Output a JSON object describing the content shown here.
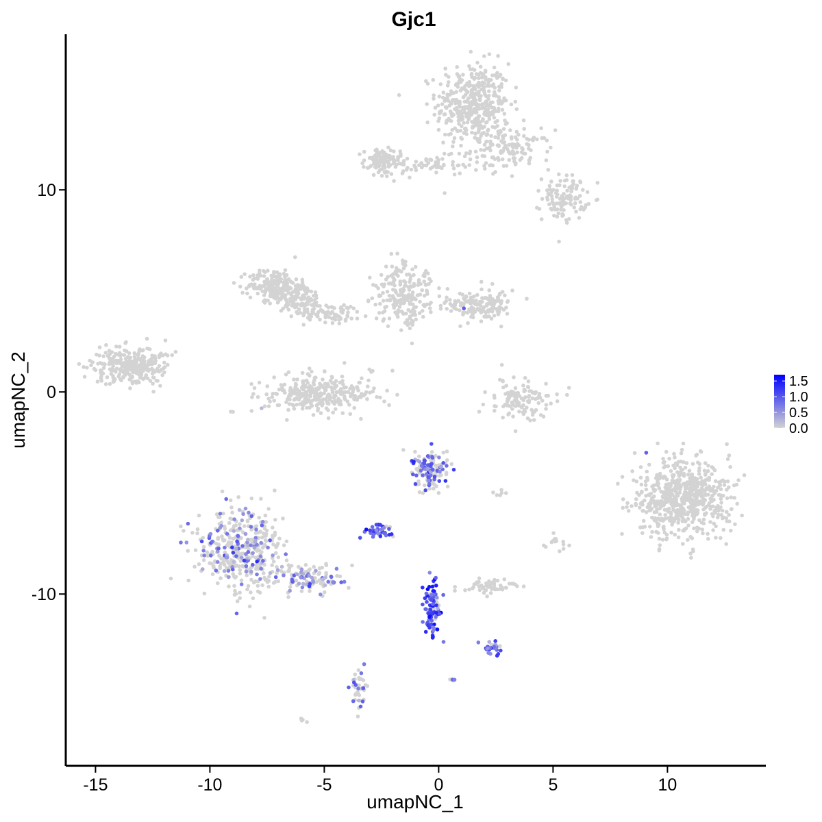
{
  "chart_data": {
    "type": "scatter",
    "title": "Gjc1",
    "xlabel": "umapNC_1",
    "ylabel": "umapNC_2",
    "xlim": [
      -16.3,
      14.3
    ],
    "ylim": [
      -18.5,
      17.7
    ],
    "x_ticks": [
      -15,
      -10,
      -5,
      0,
      5,
      10
    ],
    "x_tick_labels": [
      "-15",
      "-10",
      "-5",
      "0",
      "5",
      "10"
    ],
    "y_ticks": [
      -10,
      0,
      10
    ],
    "y_tick_labels": [
      "-10",
      "0",
      "10"
    ],
    "color_scale": {
      "low_color": "#d3d3d3",
      "high_color": "#0000ff",
      "min": 0,
      "max": 1.7,
      "ticks": [
        0.0,
        0.5,
        1.0,
        1.5
      ],
      "tick_labels": [
        "0.0",
        "0.5",
        "1.0",
        "1.5"
      ],
      "legend_position": "right"
    },
    "grid": false,
    "clusters": [
      {
        "cx": 1.5,
        "cy": 14.2,
        "sx": 1.0,
        "sy": 1.3,
        "n": 420,
        "expr": 0,
        "expr_frac": 0
      },
      {
        "cx": 3.2,
        "cy": 12.0,
        "sx": 1.1,
        "sy": 0.6,
        "n": 120,
        "expr": 0,
        "expr_frac": 0
      },
      {
        "cx": 5.5,
        "cy": 9.6,
        "sx": 0.6,
        "sy": 0.7,
        "n": 110,
        "expr": 0,
        "expr_frac": 0
      },
      {
        "cx": -2.5,
        "cy": 11.4,
        "sx": 0.5,
        "sy": 0.4,
        "n": 90,
        "expr": 0,
        "expr_frac": 0
      },
      {
        "cx": -0.5,
        "cy": 11.2,
        "sx": 1.4,
        "sy": 0.3,
        "n": 70,
        "expr": 0,
        "expr_frac": 0
      },
      {
        "cx": -7.2,
        "cy": 5.3,
        "sx": 0.7,
        "sy": 0.5,
        "n": 170,
        "expr": 0,
        "expr_frac": 0
      },
      {
        "cx": -6.1,
        "cy": 4.6,
        "sx": 0.7,
        "sy": 0.5,
        "n": 130,
        "expr": 0,
        "expr_frac": 0
      },
      {
        "cx": -4.6,
        "cy": 3.9,
        "sx": 0.8,
        "sy": 0.3,
        "n": 70,
        "expr": 0,
        "expr_frac": 0
      },
      {
        "cx": -5.2,
        "cy": -0.1,
        "sx": 1.6,
        "sy": 0.6,
        "n": 300,
        "expr": 0.4,
        "expr_frac": 0.01
      },
      {
        "cx": -1.5,
        "cy": 4.8,
        "sx": 0.8,
        "sy": 1.0,
        "n": 220,
        "expr": 0,
        "expr_frac": 0
      },
      {
        "cx": 1.8,
        "cy": 4.3,
        "sx": 0.9,
        "sy": 0.5,
        "n": 150,
        "expr": 0.6,
        "expr_frac": 0.01
      },
      {
        "cx": -13.4,
        "cy": 1.3,
        "sx": 1.0,
        "sy": 0.6,
        "n": 300,
        "expr": 0,
        "expr_frac": 0
      },
      {
        "cx": 3.6,
        "cy": -0.4,
        "sx": 0.9,
        "sy": 0.6,
        "n": 120,
        "expr": 0,
        "expr_frac": 0
      },
      {
        "cx": 10.7,
        "cy": -5.3,
        "sx": 1.3,
        "sy": 1.2,
        "n": 650,
        "expr": 0.7,
        "expr_frac": 0.002
      },
      {
        "cx": -8.6,
        "cy": -7.8,
        "sx": 1.2,
        "sy": 1.2,
        "n": 420,
        "expr": 0.6,
        "expr_frac": 0.22
      },
      {
        "cx": -5.6,
        "cy": -9.3,
        "sx": 0.9,
        "sy": 0.4,
        "n": 110,
        "expr": 0.6,
        "expr_frac": 0.35
      },
      {
        "cx": -0.4,
        "cy": -3.8,
        "sx": 0.5,
        "sy": 0.6,
        "n": 140,
        "expr": 0.9,
        "expr_frac": 0.5
      },
      {
        "cx": -2.6,
        "cy": -6.9,
        "sx": 0.4,
        "sy": 0.2,
        "n": 40,
        "expr": 1.0,
        "expr_frac": 0.85
      },
      {
        "cx": -0.3,
        "cy": -10.8,
        "sx": 0.25,
        "sy": 1.0,
        "n": 90,
        "expr": 1.1,
        "expr_frac": 0.9
      },
      {
        "cx": 2.4,
        "cy": -12.6,
        "sx": 0.3,
        "sy": 0.2,
        "n": 35,
        "expr": 0.8,
        "expr_frac": 0.6
      },
      {
        "cx": 2.2,
        "cy": -9.6,
        "sx": 0.7,
        "sy": 0.2,
        "n": 60,
        "expr": 0,
        "expr_frac": 0
      },
      {
        "cx": -3.5,
        "cy": -14.7,
        "sx": 0.2,
        "sy": 0.7,
        "n": 40,
        "expr": 0.7,
        "expr_frac": 0.3
      },
      {
        "cx": 5.1,
        "cy": -7.4,
        "sx": 0.3,
        "sy": 0.3,
        "n": 15,
        "expr": 0,
        "expr_frac": 0
      },
      {
        "cx": 2.7,
        "cy": -5.0,
        "sx": 0.15,
        "sy": 0.1,
        "n": 6,
        "expr": 0,
        "expr_frac": 0
      },
      {
        "cx": -5.9,
        "cy": -16.3,
        "sx": 0.15,
        "sy": 0.1,
        "n": 6,
        "expr": 0,
        "expr_frac": 0
      },
      {
        "cx": 0.6,
        "cy": -14.2,
        "sx": 0.1,
        "sy": 0.1,
        "n": 4,
        "expr": 0.6,
        "expr_frac": 0.7
      }
    ]
  }
}
